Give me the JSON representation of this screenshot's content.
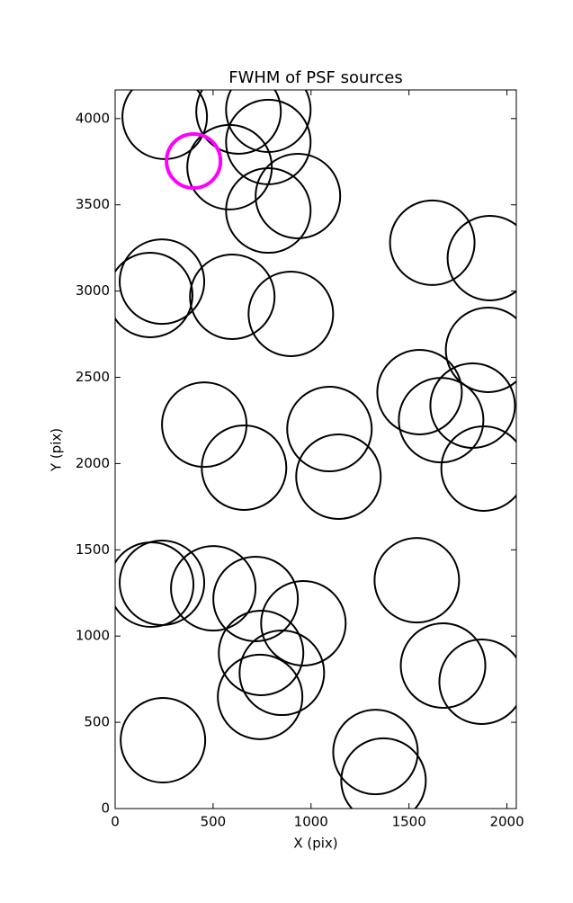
{
  "chart_data": {
    "type": "scatter",
    "title": "FWHM of PSF sources",
    "x_label": "X (pix)",
    "y_label": "Y (pix)",
    "x": [
      253,
      630,
      782,
      782,
      584,
      400,
      933,
      782,
      1619,
      1913,
      239,
      179,
      598,
      897,
      1904,
      1554,
      1825,
      1664,
      1881,
      455,
      658,
      1094,
      1140,
      184,
      239,
      501,
      717,
      961,
      745,
      851,
      740,
      1540,
      1674,
      1871,
      244,
      1329,
      1370
    ],
    "y": [
      4010,
      4041,
      4051,
      3864,
      3718,
      3754,
      3551,
      3467,
      3280,
      3191,
      3055,
      2977,
      2967,
      2868,
      2659,
      2414,
      2336,
      2252,
      1971,
      2226,
      1976,
      2200,
      1924,
      1298,
      1309,
      1277,
      1215,
      1074,
      902,
      787,
      647,
      1324,
      829,
      735,
      396,
      328,
      162
    ],
    "sizes": [
      47,
      47,
      47,
      47,
      47,
      30,
      47,
      47,
      47,
      47,
      47,
      47,
      47,
      47,
      47,
      47,
      47,
      47,
      47,
      47,
      47,
      47,
      47,
      47,
      47,
      47,
      47,
      47,
      47,
      47,
      47,
      47,
      47,
      47,
      47,
      47,
      47
    ],
    "colors": [
      "#000000",
      "#000000",
      "#000000",
      "#000000",
      "#000000",
      "#ff00ff",
      "#000000",
      "#000000",
      "#000000",
      "#000000",
      "#000000",
      "#000000",
      "#000000",
      "#000000",
      "#000000",
      "#000000",
      "#000000",
      "#000000",
      "#000000",
      "#000000",
      "#000000",
      "#000000",
      "#000000",
      "#000000",
      "#000000",
      "#000000",
      "#000000",
      "#000000",
      "#000000",
      "#000000",
      "#000000",
      "#000000",
      "#000000",
      "#000000",
      "#000000",
      "#000000",
      "#000000"
    ],
    "xlim": [
      0,
      2048
    ],
    "ylim": [
      0,
      4166
    ],
    "xticks": [
      0,
      500,
      1000,
      1500,
      2000
    ],
    "yticks": [
      0,
      500,
      1000,
      1500,
      2000,
      2500,
      3000,
      3500,
      4000
    ]
  }
}
